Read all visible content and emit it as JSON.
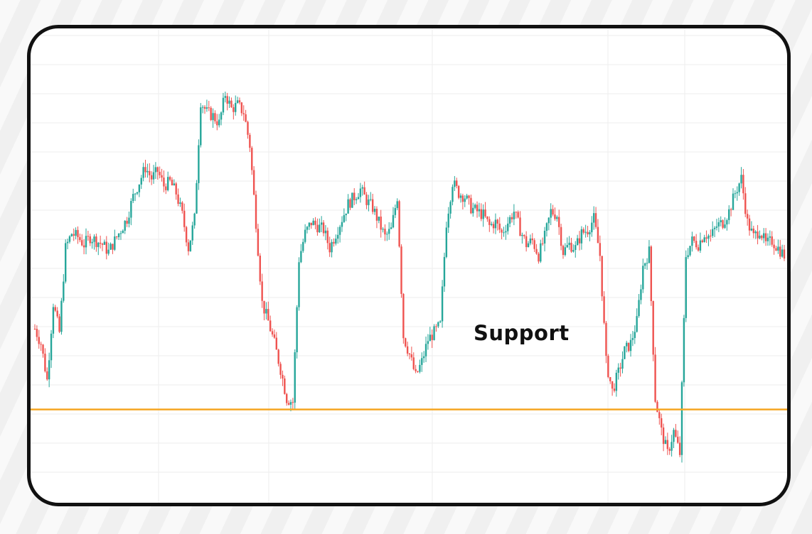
{
  "chart_data": {
    "type": "candlestick",
    "annotations": [
      {
        "text": "Support",
        "type": "horizontal-line",
        "y": 2.0
      }
    ],
    "ylim": [
      0,
      12
    ],
    "grid": true,
    "colors": {
      "up": "#26a69a",
      "down": "#ef5350",
      "support_line": "#f5a623",
      "grid": "#ededed"
    },
    "series": [
      {
        "values": [
          4.2,
          3.8,
          2.8,
          4.9,
          4.1,
          6.4,
          6.8,
          6.7,
          6.5,
          6.7,
          6.6,
          6.5,
          6.3,
          6.6,
          6.9,
          7.2,
          7.8,
          8.2,
          8.6,
          8.3,
          8.5,
          8.1,
          8.2,
          7.9,
          7.3,
          6.4,
          7.2,
          10.4,
          10.1,
          10.0,
          9.8,
          10.6,
          10.2,
          10.3,
          10.1,
          9.2,
          7.1,
          4.9,
          4.4,
          3.8,
          3.1,
          2.3,
          2.2,
          6.1,
          6.8,
          7.1,
          7.0,
          6.9,
          6.4,
          6.8,
          7.2,
          7.6,
          7.8,
          8.0,
          7.7,
          7.5,
          7.1,
          6.7,
          6.9,
          7.8,
          4.0,
          3.5,
          2.9,
          3.3,
          3.9,
          4.1,
          4.3,
          7.1,
          8.2,
          7.9,
          7.8,
          7.5,
          7.4,
          7.3,
          7.0,
          7.1,
          6.8,
          7.1,
          7.4,
          6.9,
          6.5,
          6.6,
          6.2,
          6.7,
          7.4,
          7.3,
          6.3,
          6.5,
          6.4,
          6.8,
          6.9,
          7.2,
          6.2,
          3.3,
          2.5,
          3.0,
          3.6,
          3.8,
          4.4,
          5.9,
          6.3,
          2.3,
          1.4,
          0.8,
          1.4,
          0.8,
          6.2,
          6.6,
          6.5,
          6.8,
          6.7,
          7.0,
          7.1,
          7.4,
          7.9,
          8.3,
          7.1,
          6.7,
          6.9,
          6.5,
          6.6,
          6.4,
          6.2
        ]
      }
    ]
  }
}
